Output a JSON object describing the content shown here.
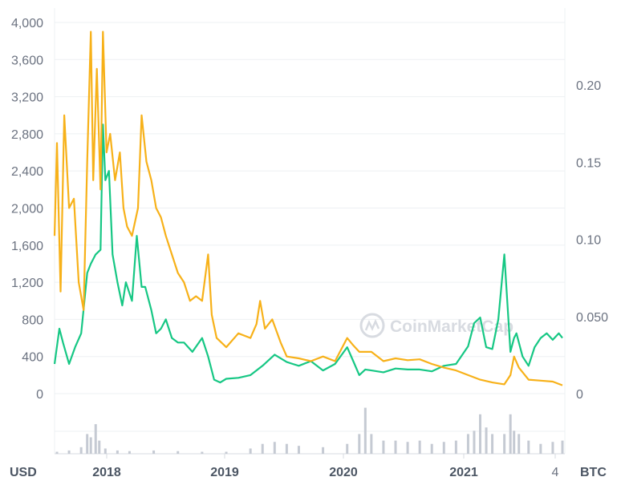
{
  "chart_data": {
    "type": "line",
    "left_axis": {
      "unit_label": "USD",
      "ticks": [
        "0",
        "400",
        "800",
        "1,200",
        "1,600",
        "2,000",
        "2,400",
        "2,800",
        "3,200",
        "3,600",
        "4,000"
      ],
      "ylim": [
        0,
        4000
      ]
    },
    "right_axis": {
      "unit_label": "BTC",
      "ticks": [
        "0",
        "0.050",
        "0.10",
        "0.15",
        "0.20"
      ],
      "ylim": [
        0,
        0.2
      ]
    },
    "x_axis": {
      "ticks": [
        "2018",
        "2019",
        "2020",
        "2021",
        "4"
      ]
    },
    "grid": true,
    "watermark": "CoinMarketCap",
    "series": [
      {
        "axis": "left",
        "color": "#16c784",
        "x": [
          2017.58,
          2017.62,
          2017.65,
          2017.7,
          2017.75,
          2017.8,
          2017.85,
          2017.88,
          2017.92,
          2017.96,
          2017.98,
          2018.0,
          2018.03,
          2018.06,
          2018.1,
          2018.14,
          2018.17,
          2018.22,
          2018.26,
          2018.3,
          2018.33,
          2018.38,
          2018.42,
          2018.46,
          2018.5,
          2018.55,
          2018.6,
          2018.65,
          2018.72,
          2018.8,
          2018.85,
          2018.9,
          2018.95,
          2019.0,
          2019.1,
          2019.2,
          2019.3,
          2019.4,
          2019.5,
          2019.55,
          2019.6,
          2019.7,
          2019.8,
          2019.9,
          2020.0,
          2020.05,
          2020.1,
          2020.15,
          2020.2,
          2020.3,
          2020.4,
          2020.5,
          2020.6,
          2020.7,
          2020.8,
          2020.9,
          2021.0,
          2021.05,
          2021.1,
          2021.15,
          2021.2,
          2021.25,
          2021.3,
          2021.35,
          2021.38,
          2021.4,
          2021.45,
          2021.5,
          2021.55,
          2021.6,
          2021.65,
          2021.7,
          2021.75,
          2021.78
        ],
        "y": [
          320,
          700,
          550,
          320,
          500,
          650,
          1300,
          1400,
          1500,
          1550,
          2900,
          2300,
          2400,
          1500,
          1200,
          950,
          1200,
          1000,
          1700,
          1150,
          1150,
          900,
          650,
          700,
          800,
          600,
          550,
          550,
          450,
          600,
          400,
          150,
          120,
          160,
          170,
          200,
          300,
          420,
          340,
          320,
          300,
          350,
          250,
          320,
          500,
          350,
          200,
          260,
          250,
          230,
          270,
          260,
          260,
          240,
          300,
          320,
          510,
          760,
          820,
          500,
          480,
          800,
          1500,
          450,
          600,
          650,
          400,
          300,
          500,
          600,
          650,
          580,
          650,
          600
        ]
      },
      {
        "axis": "left",
        "color": "#f7b119",
        "x": [
          2017.58,
          2017.6,
          2017.63,
          2017.66,
          2017.7,
          2017.74,
          2017.78,
          2017.82,
          2017.85,
          2017.88,
          2017.9,
          2017.93,
          2017.96,
          2017.98,
          2018.01,
          2018.04,
          2018.08,
          2018.12,
          2018.15,
          2018.18,
          2018.22,
          2018.27,
          2018.3,
          2018.34,
          2018.38,
          2018.42,
          2018.46,
          2018.5,
          2018.55,
          2018.6,
          2018.65,
          2018.7,
          2018.75,
          2018.8,
          2018.85,
          2018.88,
          2018.92,
          2018.96,
          2019.0,
          2019.1,
          2019.2,
          2019.25,
          2019.28,
          2019.32,
          2019.38,
          2019.45,
          2019.5,
          2019.6,
          2019.7,
          2019.8,
          2019.9,
          2020.0,
          2020.05,
          2020.1,
          2020.2,
          2020.3,
          2020.4,
          2020.5,
          2020.6,
          2020.7,
          2020.8,
          2020.9,
          2021.0,
          2021.1,
          2021.2,
          2021.3,
          2021.35,
          2021.38,
          2021.42,
          2021.5,
          2021.6,
          2021.7,
          2021.78
        ],
        "y": [
          1700,
          2700,
          1100,
          3000,
          2000,
          2100,
          1200,
          900,
          2500,
          3900,
          2300,
          3500,
          2200,
          3900,
          2600,
          2800,
          2300,
          2600,
          2000,
          1800,
          1700,
          2000,
          3000,
          2500,
          2300,
          2000,
          1900,
          1700,
          1500,
          1300,
          1200,
          1000,
          1050,
          1000,
          1500,
          850,
          600,
          550,
          500,
          650,
          600,
          750,
          1000,
          700,
          800,
          550,
          400,
          380,
          350,
          400,
          350,
          600,
          520,
          450,
          450,
          350,
          380,
          360,
          370,
          320,
          280,
          250,
          200,
          150,
          120,
          100,
          200,
          400,
          280,
          150,
          140,
          130,
          90
        ]
      }
    ],
    "volume": {
      "x": [
        2017.6,
        2017.7,
        2017.8,
        2017.85,
        2017.88,
        2017.92,
        2017.95,
        2018.0,
        2018.1,
        2018.2,
        2018.4,
        2018.6,
        2018.8,
        2019.0,
        2019.2,
        2019.3,
        2019.4,
        2019.5,
        2019.6,
        2019.8,
        2020.0,
        2020.1,
        2020.15,
        2020.2,
        2020.3,
        2020.4,
        2020.5,
        2020.6,
        2020.7,
        2020.8,
        2020.9,
        2021.0,
        2021.05,
        2021.1,
        2021.15,
        2021.2,
        2021.3,
        2021.35,
        2021.38,
        2021.42,
        2021.5,
        2021.6,
        2021.7,
        2021.78
      ],
      "values": [
        0.03,
        0.05,
        0.1,
        0.3,
        0.25,
        0.45,
        0.2,
        0.08,
        0.05,
        0.04,
        0.05,
        0.04,
        0.03,
        0.03,
        0.08,
        0.15,
        0.18,
        0.15,
        0.12,
        0.1,
        0.15,
        0.3,
        0.7,
        0.3,
        0.2,
        0.2,
        0.18,
        0.2,
        0.15,
        0.18,
        0.2,
        0.3,
        0.35,
        0.6,
        0.4,
        0.3,
        0.3,
        0.6,
        0.35,
        0.3,
        0.2,
        0.15,
        0.18,
        0.2
      ]
    }
  }
}
